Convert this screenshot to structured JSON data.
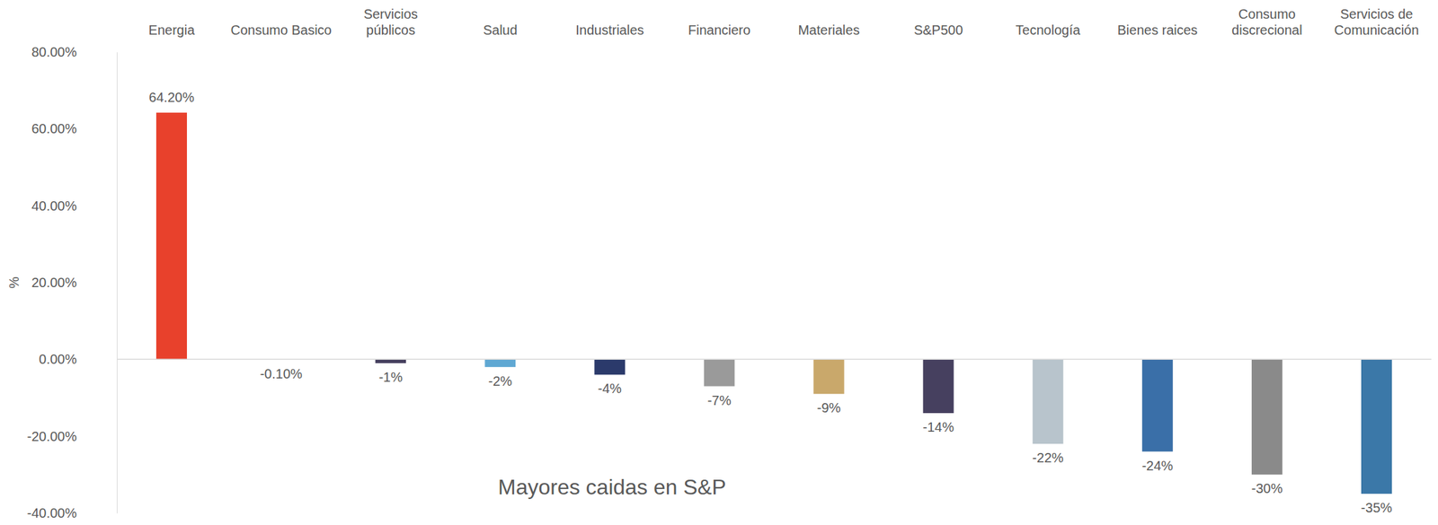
{
  "chart_data": {
    "type": "bar",
    "title": "Mayores caidas en S&P",
    "y_label": "%",
    "categories": [
      "Energia",
      "Consumo Basico",
      "Servicios públicos",
      "Salud",
      "Industriales",
      "Financiero",
      "Materiales",
      "S&P500",
      "Tecnología",
      "Bienes  raices",
      "Consumo discrecional",
      "Servicios de Comunicación"
    ],
    "values": [
      64.2,
      -0.1,
      -1,
      -2,
      -4,
      -7,
      -9,
      -14,
      -22,
      -24,
      -30,
      -35
    ],
    "value_labels": [
      "64.20%",
      "-0.10%",
      "-1%",
      "-2%",
      "-4%",
      "-7%",
      "-9%",
      "-14%",
      "-22%",
      "-24%",
      "-30%",
      "-35%"
    ],
    "colors": [
      "#e8412c",
      "#7f7f7f",
      "#46405f",
      "#5fa8d3",
      "#2b3a6b",
      "#9a9a9a",
      "#c9a86b",
      "#46405f",
      "#b8c4cc",
      "#3a6fa8",
      "#8a8a8a",
      "#3b78a8"
    ],
    "ylim": [
      -40,
      80
    ],
    "yticks": [
      {
        "value": -40,
        "label": "-40.00%"
      },
      {
        "value": -20,
        "label": "-20.00%"
      },
      {
        "value": 0,
        "label": "0.00%"
      },
      {
        "value": 20,
        "label": "20.00%"
      },
      {
        "value": 40,
        "label": "40.00%"
      },
      {
        "value": 60,
        "label": "60.00%"
      },
      {
        "value": 80,
        "label": "80.00%"
      }
    ],
    "grid": false,
    "data_labels": true
  }
}
